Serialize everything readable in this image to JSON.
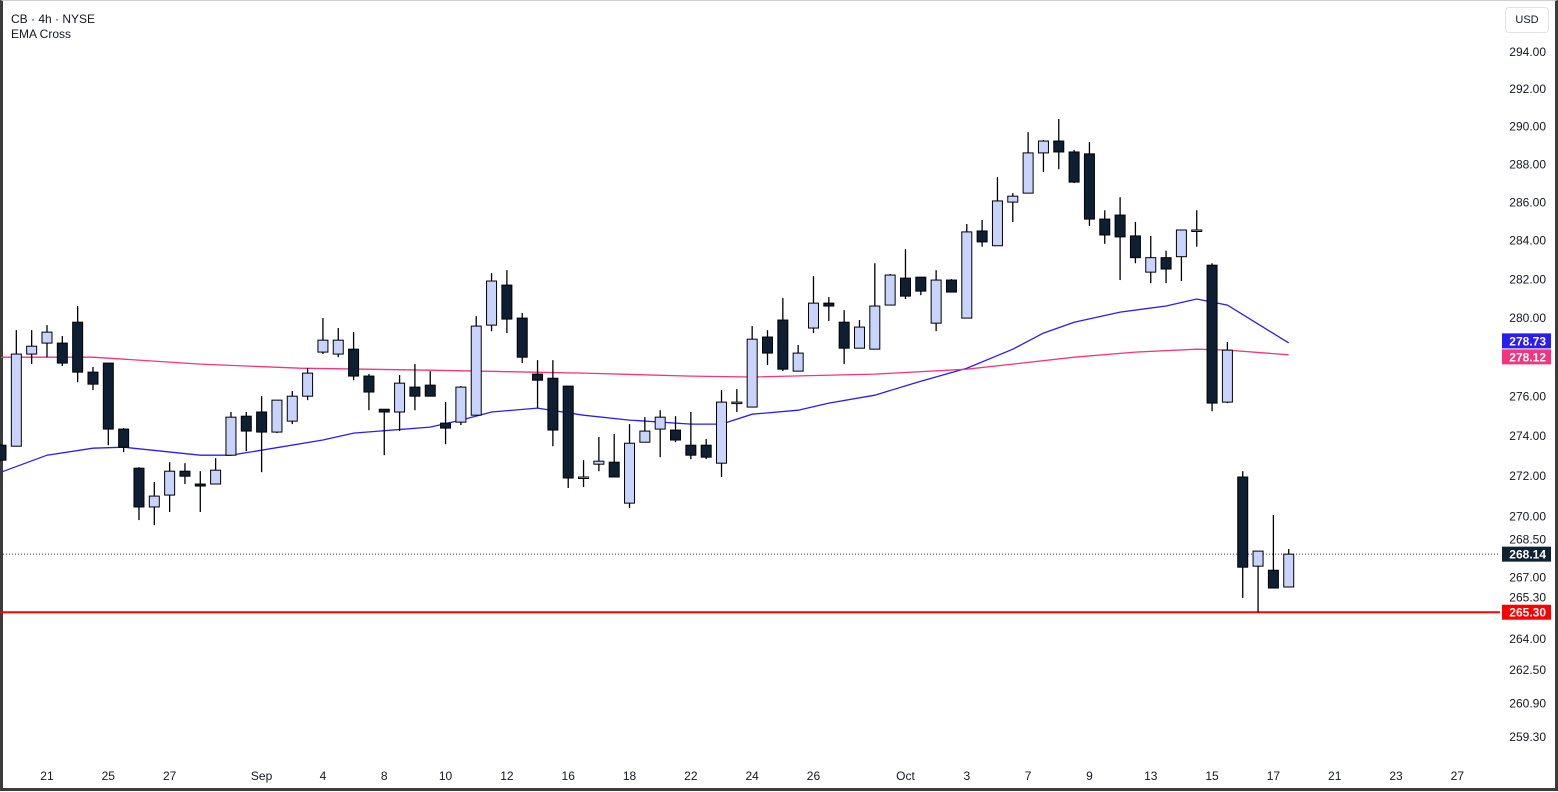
{
  "header": {
    "title": "CB · 4h · NYSE",
    "indicator": "EMA Cross",
    "currency_button": "USD"
  },
  "colors": {
    "up_fill": "#c9d4fc",
    "down_fill": "#0f1f33",
    "outline": "#000000",
    "ema_fast": "#2a1cf5",
    "ema_slow": "#f6337e",
    "last_price_bg": "#0f2233",
    "support_line": "#ff0000"
  },
  "chart_data": {
    "type": "candlestick",
    "title": "CB · 4h · NYSE",
    "yscale": "log",
    "ylim": [
      258.5,
      295.5
    ],
    "y_ticks": [
      "294.00",
      "292.00",
      "290.00",
      "288.00",
      "286.00",
      "284.00",
      "282.00",
      "280.00",
      "276.00",
      "274.00",
      "272.00",
      "270.00",
      "268.50",
      "267.00",
      "265.30",
      "264.00",
      "262.50",
      "260.90",
      "259.30"
    ],
    "x_ticks": [
      {
        "i": 3,
        "label": "21"
      },
      {
        "i": 7,
        "label": "25"
      },
      {
        "i": 11,
        "label": "27"
      },
      {
        "i": 17,
        "label": "Sep"
      },
      {
        "i": 21,
        "label": "4"
      },
      {
        "i": 25,
        "label": "8"
      },
      {
        "i": 29,
        "label": "10"
      },
      {
        "i": 33,
        "label": "12"
      },
      {
        "i": 37,
        "label": "16"
      },
      {
        "i": 41,
        "label": "18"
      },
      {
        "i": 45,
        "label": "22"
      },
      {
        "i": 49,
        "label": "24"
      },
      {
        "i": 53,
        "label": "26"
      },
      {
        "i": 59,
        "label": "Oct"
      },
      {
        "i": 63,
        "label": "3"
      },
      {
        "i": 67,
        "label": "7"
      },
      {
        "i": 71,
        "label": "9"
      },
      {
        "i": 75,
        "label": "13"
      },
      {
        "i": 79,
        "label": "15"
      },
      {
        "i": 83,
        "label": "17"
      },
      {
        "i": 87,
        "label": "21"
      },
      {
        "i": 91,
        "label": "23"
      },
      {
        "i": 95,
        "label": "27"
      }
    ],
    "ohlc": [
      [
        273.55,
        273.6,
        272.8,
        272.8
      ],
      [
        273.5,
        279.38,
        273.5,
        278.16
      ],
      [
        278.16,
        279.38,
        277.65,
        278.56
      ],
      [
        278.72,
        279.64,
        278.0,
        279.28
      ],
      [
        278.72,
        279.08,
        277.55,
        277.7
      ],
      [
        279.79,
        280.62,
        276.73,
        277.24
      ],
      [
        277.24,
        277.5,
        276.33,
        276.63
      ],
      [
        277.7,
        277.7,
        273.55,
        274.36
      ],
      [
        274.36,
        274.41,
        273.2,
        273.45
      ],
      [
        272.4,
        272.45,
        269.82,
        270.47
      ],
      [
        270.47,
        271.71,
        269.57,
        271.01
      ],
      [
        271.06,
        272.7,
        270.22,
        272.25
      ],
      [
        272.25,
        272.65,
        271.61,
        272.0
      ],
      [
        271.61,
        272.25,
        270.22,
        271.51
      ],
      [
        271.61,
        272.9,
        271.61,
        272.3
      ],
      [
        273.05,
        275.22,
        273.05,
        274.96
      ],
      [
        275.01,
        275.22,
        273.25,
        274.26
      ],
      [
        275.22,
        276.02,
        272.2,
        274.21
      ],
      [
        274.21,
        275.82,
        274.16,
        275.82
      ],
      [
        274.76,
        276.28,
        274.61,
        276.02
      ],
      [
        276.02,
        277.44,
        275.82,
        277.19
      ],
      [
        278.26,
        280.0,
        278.16,
        278.87
      ],
      [
        278.16,
        279.49,
        278.0,
        278.87
      ],
      [
        278.41,
        279.28,
        276.83,
        277.04
      ],
      [
        277.04,
        277.14,
        275.31,
        276.23
      ],
      [
        275.36,
        275.36,
        273.05,
        275.22
      ],
      [
        275.22,
        277.09,
        274.26,
        276.68
      ],
      [
        276.48,
        277.65,
        275.31,
        276.02
      ],
      [
        276.58,
        277.29,
        276.02,
        276.02
      ],
      [
        274.66,
        275.72,
        273.6,
        274.41
      ],
      [
        274.71,
        276.53,
        274.56,
        276.48
      ],
      [
        275.06,
        280.1,
        275.06,
        279.59
      ],
      [
        279.64,
        282.32,
        279.33,
        281.91
      ],
      [
        281.7,
        282.47,
        279.23,
        279.95
      ],
      [
        280.0,
        280.26,
        277.7,
        278.0
      ],
      [
        277.14,
        277.85,
        275.42,
        276.83
      ],
      [
        276.93,
        277.85,
        273.5,
        274.31
      ],
      [
        276.53,
        276.53,
        271.41,
        271.91
      ],
      [
        271.96,
        272.8,
        271.46,
        271.96
      ],
      [
        272.6,
        273.96,
        272.25,
        272.75
      ],
      [
        272.7,
        274.11,
        271.96,
        271.96
      ],
      [
        270.66,
        274.61,
        270.42,
        273.65
      ],
      [
        273.7,
        274.96,
        273.7,
        274.26
      ],
      [
        274.36,
        275.31,
        272.95,
        274.96
      ],
      [
        274.31,
        275.01,
        273.7,
        273.81
      ],
      [
        273.55,
        275.22,
        272.85,
        273.05
      ],
      [
        273.55,
        273.86,
        272.85,
        272.95
      ],
      [
        272.65,
        276.33,
        271.96,
        275.72
      ],
      [
        275.72,
        276.38,
        275.22,
        275.72
      ],
      [
        275.47,
        279.59,
        275.47,
        278.92
      ],
      [
        279.03,
        279.38,
        277.6,
        278.21
      ],
      [
        279.9,
        281.03,
        277.29,
        277.39
      ],
      [
        277.29,
        278.62,
        277.29,
        278.21
      ],
      [
        279.49,
        282.16,
        279.23,
        280.77
      ],
      [
        280.77,
        281.08,
        279.85,
        280.62
      ],
      [
        279.79,
        280.41,
        277.65,
        278.46
      ],
      [
        278.46,
        279.9,
        278.46,
        279.54
      ],
      [
        278.41,
        282.83,
        278.41,
        280.62
      ],
      [
        280.67,
        282.27,
        280.67,
        282.22
      ],
      [
        282.06,
        283.56,
        280.98,
        281.13
      ],
      [
        282.11,
        282.11,
        281.18,
        281.39
      ],
      [
        279.74,
        282.47,
        279.33,
        281.96
      ],
      [
        281.96,
        282.01,
        281.34,
        281.34
      ],
      [
        280.0,
        284.87,
        280.0,
        284.46
      ],
      [
        284.51,
        285.08,
        283.69,
        283.94
      ],
      [
        283.74,
        287.33,
        283.74,
        286.08
      ],
      [
        286.02,
        286.49,
        284.98,
        286.33
      ],
      [
        286.49,
        289.71,
        286.49,
        288.61
      ],
      [
        288.61,
        289.29,
        287.6,
        289.24
      ],
      [
        289.24,
        290.41,
        287.75,
        288.66
      ],
      [
        288.66,
        288.76,
        287.02,
        287.07
      ],
      [
        288.56,
        289.19,
        284.77,
        285.13
      ],
      [
        285.13,
        285.59,
        283.84,
        284.3
      ],
      [
        285.34,
        286.28,
        281.96,
        284.2
      ],
      [
        284.25,
        284.98,
        282.83,
        283.12
      ],
      [
        282.37,
        284.25,
        281.8,
        283.12
      ],
      [
        283.12,
        283.48,
        281.8,
        282.53
      ],
      [
        283.17,
        284.56,
        281.91,
        284.56
      ],
      [
        284.56,
        285.59,
        283.69,
        284.56
      ],
      [
        282.73,
        282.83,
        275.26,
        275.67
      ],
      [
        275.72,
        278.77,
        275.67,
        278.36
      ],
      [
        271.96,
        272.25,
        266.0,
        267.5
      ],
      [
        267.55,
        268.29,
        265.3,
        268.29
      ],
      [
        267.35,
        270.07,
        266.48,
        266.48
      ],
      [
        266.53,
        268.39,
        266.53,
        268.14
      ]
    ],
    "series": [
      {
        "name": "EMA fast",
        "points": [
          [
            0,
            272.2
          ],
          [
            3,
            273.05
          ],
          [
            6,
            273.4
          ],
          [
            8,
            273.45
          ],
          [
            13,
            273.05
          ],
          [
            15,
            273.05
          ],
          [
            17,
            273.3
          ],
          [
            21,
            273.81
          ],
          [
            23,
            274.16
          ],
          [
            28,
            274.46
          ],
          [
            30,
            274.81
          ],
          [
            32,
            275.22
          ],
          [
            35,
            275.42
          ],
          [
            38,
            275.06
          ],
          [
            41,
            274.81
          ],
          [
            45,
            274.61
          ],
          [
            47,
            274.61
          ],
          [
            49,
            275.11
          ],
          [
            52,
            275.31
          ],
          [
            54,
            275.67
          ],
          [
            57,
            276.07
          ],
          [
            60,
            276.78
          ],
          [
            63,
            277.44
          ],
          [
            66,
            278.41
          ],
          [
            68,
            279.23
          ],
          [
            70,
            279.79
          ],
          [
            73,
            280.31
          ],
          [
            76,
            280.62
          ],
          [
            78,
            280.98
          ],
          [
            80,
            280.67
          ],
          [
            82,
            279.69
          ],
          [
            84,
            278.73
          ]
        ]
      },
      {
        "name": "EMA slow",
        "points": [
          [
            0,
            278.0
          ],
          [
            6,
            278.0
          ],
          [
            13,
            277.65
          ],
          [
            19.5,
            277.44
          ],
          [
            28,
            277.34
          ],
          [
            38,
            277.19
          ],
          [
            45,
            277.04
          ],
          [
            49,
            276.99
          ],
          [
            57,
            277.14
          ],
          [
            63,
            277.39
          ],
          [
            66,
            277.65
          ],
          [
            70,
            278.0
          ],
          [
            74,
            278.26
          ],
          [
            78,
            278.41
          ],
          [
            80,
            278.36
          ],
          [
            84,
            278.12
          ]
        ]
      }
    ],
    "badges": [
      {
        "label": "278.73",
        "value": 278.73,
        "color": "#2a1cf5"
      },
      {
        "label": "278.12",
        "value": 278.12,
        "color": "#f6337e"
      },
      {
        "label": "268.14",
        "value": 268.14,
        "color": "#0f2233"
      },
      {
        "label": "265.30",
        "value": 265.3,
        "color": "#ff0000"
      }
    ],
    "last_price": 268.14,
    "support_level": 265.3
  }
}
